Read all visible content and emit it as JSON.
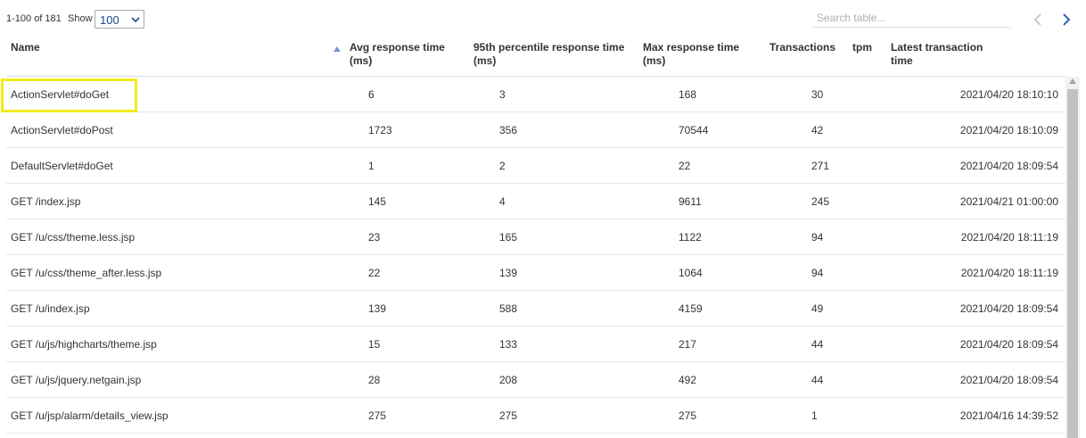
{
  "toolbar": {
    "range_text": "1-100 of 181",
    "show_label": "Show",
    "show_value": "100",
    "search_placeholder": "Search table..."
  },
  "colors": {
    "accent_blue": "#3b5fc0",
    "pager_disabled": "#c9ccd3",
    "highlight_yellow": "#f3ea1a"
  },
  "table": {
    "columns": [
      {
        "label": "Name",
        "sorted": true
      },
      {
        "label": "Avg response time (ms)"
      },
      {
        "label": "95th percentile response time (ms)"
      },
      {
        "label": "Max response time (ms)"
      },
      {
        "label": "Transactions"
      },
      {
        "label": "tpm"
      },
      {
        "label": "Latest transaction time"
      }
    ],
    "rows": [
      {
        "name": "ActionServlet#doGet",
        "avg": "6",
        "p95": "3",
        "max": "168",
        "transactions": "30",
        "tpm": "",
        "latest": "2021/04/20 18:10:10"
      },
      {
        "name": "ActionServlet#doPost",
        "avg": "1723",
        "p95": "356",
        "max": "70544",
        "transactions": "42",
        "tpm": "",
        "latest": "2021/04/20 18:10:09"
      },
      {
        "name": "DefaultServlet#doGet",
        "avg": "1",
        "p95": "2",
        "max": "22",
        "transactions": "271",
        "tpm": "",
        "latest": "2021/04/20 18:09:54"
      },
      {
        "name": "GET /index.jsp",
        "avg": "145",
        "p95": "4",
        "max": "9611",
        "transactions": "245",
        "tpm": "",
        "latest": "2021/04/21 01:00:00"
      },
      {
        "name": "GET /u/css/theme.less.jsp",
        "avg": "23",
        "p95": "165",
        "max": "1122",
        "transactions": "94",
        "tpm": "",
        "latest": "2021/04/20 18:11:19"
      },
      {
        "name": "GET /u/css/theme_after.less.jsp",
        "avg": "22",
        "p95": "139",
        "max": "1064",
        "transactions": "94",
        "tpm": "",
        "latest": "2021/04/20 18:11:19"
      },
      {
        "name": "GET /u/index.jsp",
        "avg": "139",
        "p95": "588",
        "max": "4159",
        "transactions": "49",
        "tpm": "",
        "latest": "2021/04/20 18:09:54"
      },
      {
        "name": "GET /u/js/highcharts/theme.jsp",
        "avg": "15",
        "p95": "133",
        "max": "217",
        "transactions": "44",
        "tpm": "",
        "latest": "2021/04/20 18:09:54"
      },
      {
        "name": "GET /u/js/jquery.netgain.jsp",
        "avg": "28",
        "p95": "208",
        "max": "492",
        "transactions": "44",
        "tpm": "",
        "latest": "2021/04/20 18:09:54"
      },
      {
        "name": "GET /u/jsp/alarm/details_view.jsp",
        "avg": "275",
        "p95": "275",
        "max": "275",
        "transactions": "1",
        "tpm": "",
        "latest": "2021/04/16 14:39:52"
      }
    ]
  }
}
